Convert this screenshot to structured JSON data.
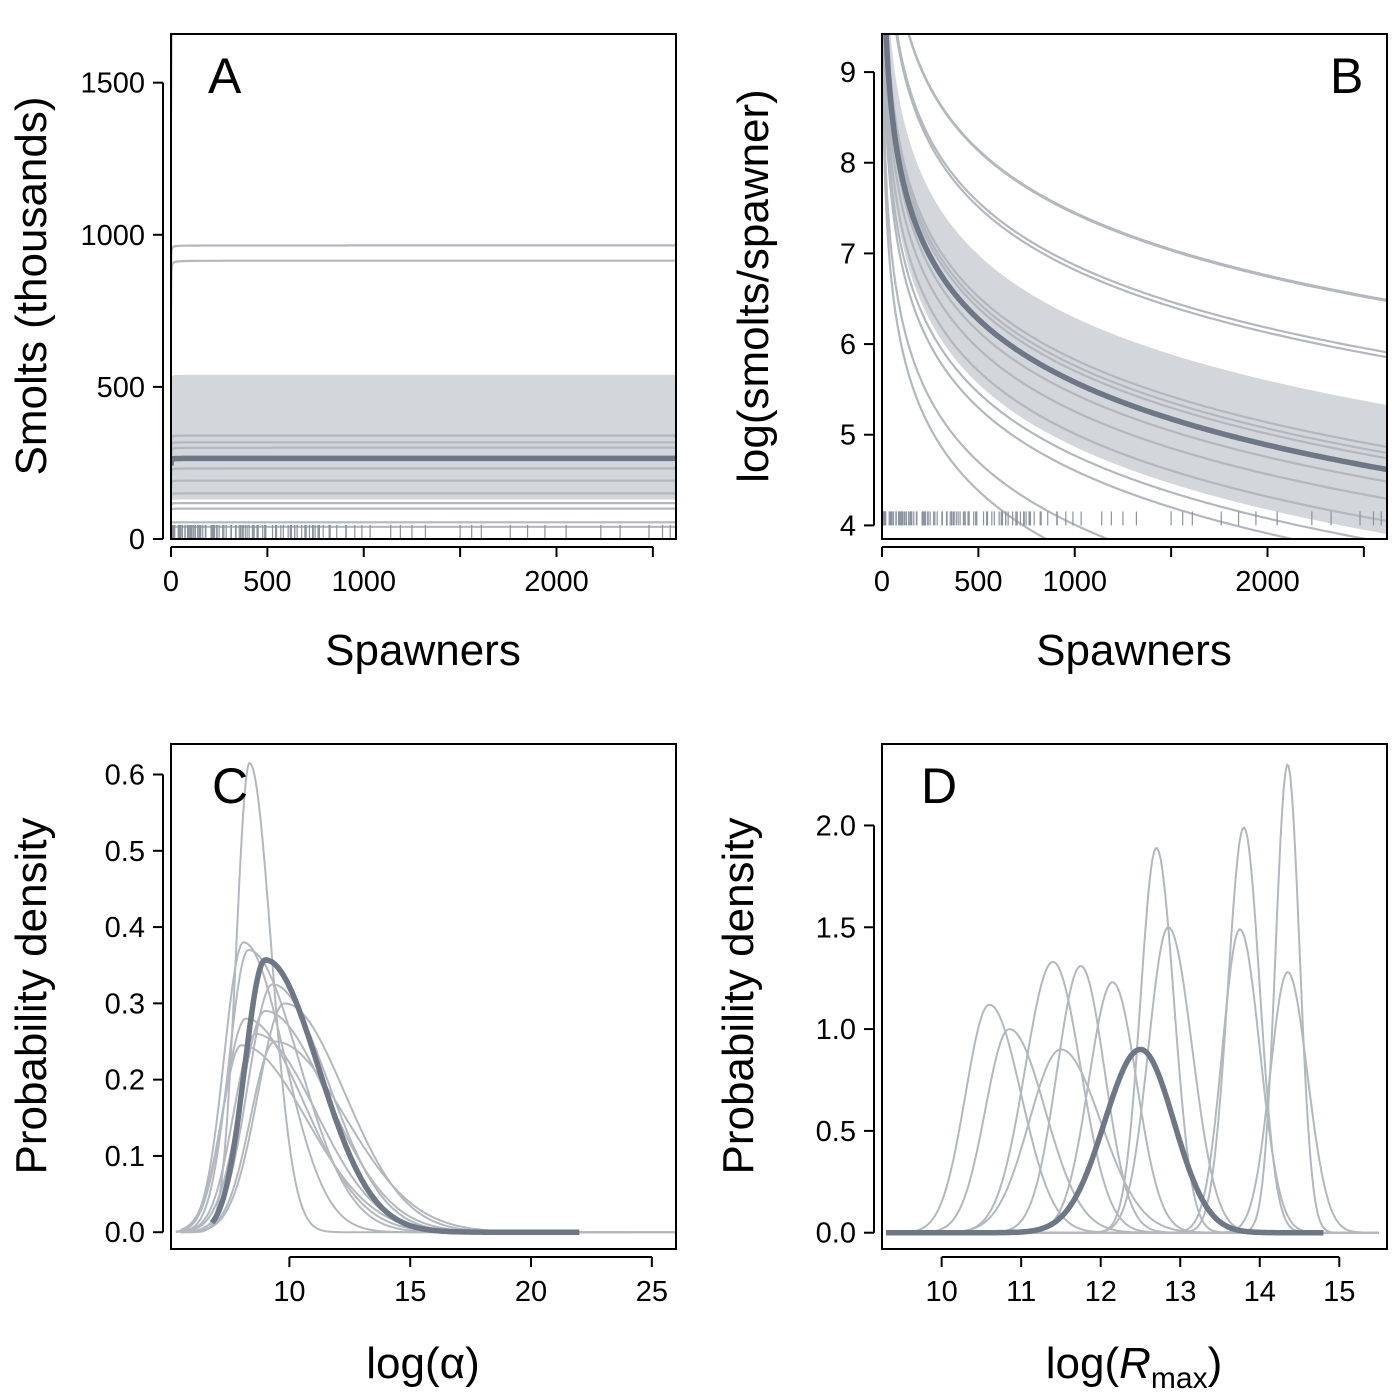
{
  "colors": {
    "thin": "#b3b8bf",
    "mean": "#6d7786",
    "band": "#d3d6da",
    "rug": "#8a93a0"
  },
  "chart_data": [
    {
      "panel": "A",
      "type": "line",
      "xlabel": "Spawners",
      "ylabel": "Smolts (thousands)",
      "xlim": [
        0,
        2620
      ],
      "ylim": [
        0,
        1660
      ],
      "xticks": [
        0,
        500,
        1000,
        1500,
        2000,
        2500
      ],
      "xtick_labels": [
        "0",
        "500",
        "1000",
        "",
        "2000",
        ""
      ],
      "yticks": [
        0,
        500,
        1000,
        1500
      ],
      "ytick_labels": [
        "0",
        "500",
        "1000",
        "1500"
      ],
      "model": "beverton-holt R = a*S/(1 + a*S/Rmax)",
      "mean_curve": {
        "a": 5400,
        "Rmax": 265
      },
      "band": {
        "lower": {
          "a": 1500,
          "Rmax": 130
        },
        "upper": {
          "a": 12000,
          "Rmax": 540
        }
      },
      "curves": [
        {
          "a": 22000,
          "Rmax": 1700
        },
        {
          "a": 15000,
          "Rmax": 1720
        },
        {
          "a": 16000,
          "Rmax": 965
        },
        {
          "a": 9000,
          "Rmax": 915
        },
        {
          "a": 6000,
          "Rmax": 340
        },
        {
          "a": 4500,
          "Rmax": 318
        },
        {
          "a": 3500,
          "Rmax": 300
        },
        {
          "a": 2000,
          "Rmax": 232
        },
        {
          "a": 2500,
          "Rmax": 192
        },
        {
          "a": 1500,
          "Rmax": 150
        },
        {
          "a": 1800,
          "Rmax": 118
        },
        {
          "a": 2200,
          "Rmax": 100
        },
        {
          "a": 3000,
          "Rmax": 55
        },
        {
          "a": 5000,
          "Rmax": 40
        }
      ],
      "rug_range": [
        5,
        1050
      ],
      "rug_extra": [
        1140,
        1190,
        1250,
        1320,
        1500,
        1560,
        1610,
        1760,
        1850,
        1940,
        2050,
        2230,
        2330,
        2480,
        2550,
        2590
      ]
    },
    {
      "panel": "B",
      "type": "line",
      "xlabel": "Spawners",
      "ylabel": "log(smolts/spawner)",
      "xlim": [
        0,
        2620
      ],
      "ylim": [
        3.85,
        9.42
      ],
      "xticks": [
        0,
        500,
        1000,
        1500,
        2000,
        2500
      ],
      "xtick_labels": [
        "0",
        "500",
        "1000",
        "",
        "2000",
        ""
      ],
      "yticks": [
        4,
        5,
        6,
        7,
        8,
        9
      ],
      "ytick_labels": [
        "4",
        "5",
        "6",
        "7",
        "8",
        "9"
      ],
      "model": "y = log(R/S)",
      "rug_y": 4
    },
    {
      "panel": "C",
      "type": "line",
      "xlabel": "log(α)",
      "ylabel": "Probability density",
      "xlim": [
        5.1,
        26.0
      ],
      "ylim": [
        -0.022,
        0.64
      ],
      "xticks": [
        10,
        15,
        20,
        25
      ],
      "xtick_labels": [
        "10",
        "15",
        "20",
        "25"
      ],
      "yticks": [
        0,
        0.1,
        0.2,
        0.3,
        0.4,
        0.5,
        0.6
      ],
      "ytick_labels": [
        "0.0",
        "0.1",
        "0.2",
        "0.3",
        "0.4",
        "0.5",
        "0.6"
      ],
      "mean_curve": {
        "mode": 9.0,
        "peak": 0.357,
        "sdL": 0.85,
        "sdR": 2.2,
        "xmin": 6.8,
        "xmax": 22
      },
      "curves": [
        {
          "mode": 8.35,
          "peak": 0.615,
          "sdL": 0.55,
          "sdR": 0.9,
          "xmin": 5.5,
          "xmax": 21
        },
        {
          "mode": 8.1,
          "peak": 0.38,
          "sdL": 0.8,
          "sdR": 1.7,
          "xmin": 5.3,
          "xmax": 22
        },
        {
          "mode": 8.3,
          "peak": 0.37,
          "sdL": 0.8,
          "sdR": 2.1,
          "xmin": 5.3,
          "xmax": 23
        },
        {
          "mode": 9.3,
          "peak": 0.325,
          "sdL": 1.0,
          "sdR": 2.3,
          "xmin": 5.5,
          "xmax": 24
        },
        {
          "mode": 9.8,
          "peak": 0.3,
          "sdL": 1.1,
          "sdR": 2.5,
          "xmin": 5.5,
          "xmax": 26
        },
        {
          "mode": 9.0,
          "peak": 0.29,
          "sdL": 1.0,
          "sdR": 2.6,
          "xmin": 5.5,
          "xmax": 26
        },
        {
          "mode": 8.2,
          "peak": 0.28,
          "sdL": 0.9,
          "sdR": 2.4,
          "xmin": 5.5,
          "xmax": 24
        },
        {
          "mode": 8.6,
          "peak": 0.26,
          "sdL": 0.9,
          "sdR": 2.5,
          "xmin": 5.5,
          "xmax": 24
        },
        {
          "mode": 9.4,
          "peak": 0.25,
          "sdL": 1.0,
          "sdR": 2.9,
          "xmin": 5.5,
          "xmax": 26
        },
        {
          "mode": 8.0,
          "peak": 0.245,
          "sdL": 0.8,
          "sdR": 2.7,
          "xmin": 5.5,
          "xmax": 24
        }
      ]
    },
    {
      "panel": "D",
      "type": "line",
      "xlabel": "log(Rmax)",
      "ylabel": "Probability density",
      "xlim": [
        9.25,
        15.6
      ],
      "ylim": [
        -0.08,
        2.4
      ],
      "xticks": [
        10,
        11,
        12,
        13,
        14,
        15
      ],
      "xtick_labels": [
        "10",
        "11",
        "12",
        "13",
        "14",
        "15"
      ],
      "yticks": [
        0,
        0.5,
        1.0,
        1.5,
        2.0
      ],
      "ytick_labels": [
        "0.0",
        "0.5",
        "1.0",
        "1.5",
        "2.0"
      ],
      "mean_curve": {
        "mode": 12.5,
        "peak": 0.9,
        "sdL": 0.45,
        "sdR": 0.42,
        "xmin": 9.3,
        "xmax": 14.8
      },
      "curves": [
        {
          "mode": 10.6,
          "peak": 1.12,
          "sdL": 0.3,
          "sdR": 0.4,
          "xmin": 9.3,
          "xmax": 15.5
        },
        {
          "mode": 10.85,
          "peak": 1.0,
          "sdL": 0.3,
          "sdR": 0.45,
          "xmin": 9.3,
          "xmax": 15.5
        },
        {
          "mode": 11.4,
          "peak": 1.33,
          "sdL": 0.35,
          "sdR": 0.35,
          "xmin": 9.3,
          "xmax": 15.5
        },
        {
          "mode": 11.75,
          "peak": 1.31,
          "sdL": 0.3,
          "sdR": 0.3,
          "xmin": 9.3,
          "xmax": 15.5
        },
        {
          "mode": 11.5,
          "peak": 0.9,
          "sdL": 0.4,
          "sdR": 0.5,
          "xmin": 9.3,
          "xmax": 15.5
        },
        {
          "mode": 12.15,
          "peak": 1.23,
          "sdL": 0.3,
          "sdR": 0.3,
          "xmin": 9.3,
          "xmax": 15.5
        },
        {
          "mode": 12.7,
          "peak": 1.89,
          "sdL": 0.2,
          "sdR": 0.22,
          "xmin": 9.3,
          "xmax": 15.5
        },
        {
          "mode": 12.85,
          "peak": 1.5,
          "sdL": 0.25,
          "sdR": 0.3,
          "xmin": 9.3,
          "xmax": 15.5
        },
        {
          "mode": 13.8,
          "peak": 1.99,
          "sdL": 0.2,
          "sdR": 0.2,
          "xmin": 9.3,
          "xmax": 15.5
        },
        {
          "mode": 13.75,
          "peak": 1.49,
          "sdL": 0.22,
          "sdR": 0.25,
          "xmin": 9.3,
          "xmax": 15.5
        },
        {
          "mode": 14.35,
          "peak": 2.3,
          "sdL": 0.15,
          "sdR": 0.15,
          "xmin": 9.3,
          "xmax": 15.5
        },
        {
          "mode": 14.35,
          "peak": 1.28,
          "sdL": 0.22,
          "sdR": 0.25,
          "xmin": 9.3,
          "xmax": 15.5
        }
      ]
    }
  ]
}
